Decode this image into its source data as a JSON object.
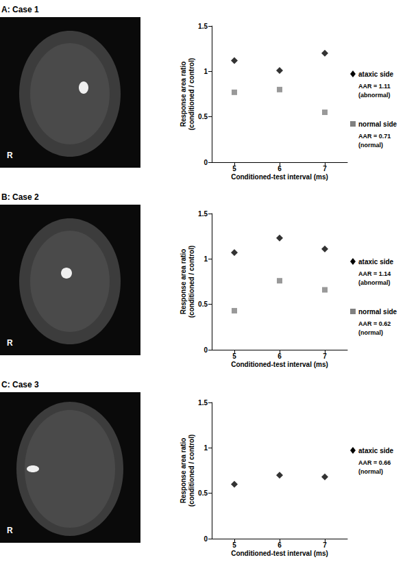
{
  "chart_data": [
    {
      "type": "scatter",
      "title": "A: Case 1",
      "annotation": "R",
      "x_label": "Conditioned-test interval (ms)",
      "y_label": "Response area ratio\n(conditioned / control)",
      "categories": [
        "5",
        "6",
        "7"
      ],
      "ylim": [
        0,
        1.5
      ],
      "yticks": [
        0,
        0.5,
        1,
        1.5
      ],
      "grid": false,
      "series": [
        {
          "name": "ataxic side",
          "color": "#000000",
          "marker": "diamond",
          "values": [
            1.12,
            1.01,
            1.2
          ],
          "annotation": [
            "AAR = 1.11",
            "(abnormal)"
          ]
        },
        {
          "name": "normal side",
          "color": "#808080",
          "marker": "square",
          "values": [
            0.77,
            0.8,
            0.55
          ],
          "annotation": [
            "AAR = 0.71",
            "(normal)"
          ]
        }
      ]
    },
    {
      "type": "scatter",
      "title": "B: Case 2",
      "annotation": "R",
      "x_label": "Conditioned-test interval (ms)",
      "y_label": "Response area ratio\n(conditioned / control)",
      "categories": [
        "5",
        "6",
        "7"
      ],
      "ylim": [
        0,
        1.5
      ],
      "yticks": [
        0,
        0.5,
        1,
        1.5
      ],
      "grid": false,
      "series": [
        {
          "name": "ataxic side",
          "color": "#000000",
          "marker": "diamond",
          "values": [
            1.07,
            1.23,
            1.11
          ],
          "annotation": [
            "AAR = 1.14",
            "(abnormal)"
          ]
        },
        {
          "name": "normal side",
          "color": "#808080",
          "marker": "square",
          "values": [
            0.43,
            0.76,
            0.66
          ],
          "annotation": [
            "AAR = 0.62",
            "(normal)"
          ]
        }
      ]
    },
    {
      "type": "scatter",
      "title": "C: Case 3",
      "annotation": "R",
      "x_label": "Conditioned-test interval (ms)",
      "y_label": "Response area ratio\n(conditioned / control)",
      "categories": [
        "5",
        "6",
        "7"
      ],
      "ylim": [
        0,
        1.5
      ],
      "yticks": [
        0,
        0.5,
        1,
        1.5
      ],
      "grid": false,
      "series": [
        {
          "name": "ataxic side",
          "color": "#000000",
          "marker": "diamond",
          "values": [
            0.6,
            0.7,
            0.68
          ],
          "annotation": [
            "AAR = 0.66",
            "(normal)"
          ]
        }
      ]
    }
  ]
}
